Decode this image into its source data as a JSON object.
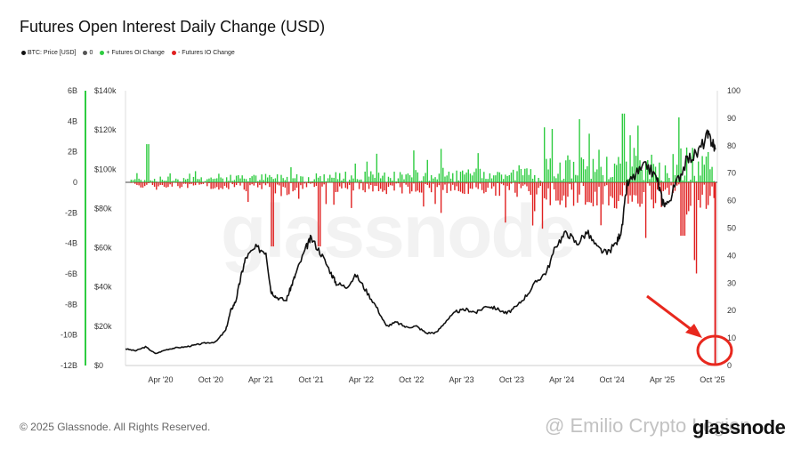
{
  "chart_data": {
    "type": "bar+line",
    "title": "Futures Open Interest Daily Change (USD)",
    "legend": [
      {
        "label": "BTC: Price [USD]",
        "color": "#111111"
      },
      {
        "label": "0",
        "color": "#555555"
      },
      {
        "label": "+ Futures OI Change",
        "color": "#2ecc40"
      },
      {
        "label": "- Futures IO Change",
        "color": "#e02020"
      }
    ],
    "x_ticks": [
      "Apr '20",
      "Oct '20",
      "Apr '21",
      "Oct '21",
      "Apr '22",
      "Oct '22",
      "Apr '23",
      "Oct '23",
      "Apr '24",
      "Oct '24",
      "Apr '25",
      "Oct '25"
    ],
    "left_axis_oi": {
      "ticks": [
        "6B",
        "4B",
        "2B",
        "0",
        "-2B",
        "-4B",
        "-6B",
        "-8B",
        "-10B",
        "-12B"
      ],
      "range": [
        -12000000000,
        6000000000
      ]
    },
    "left_axis_price": {
      "ticks": [
        "$140k",
        "$120k",
        "$100k",
        "$80k",
        "$60k",
        "$40k",
        "$20k",
        "$0"
      ],
      "range": [
        0,
        140000
      ]
    },
    "right_axis": {
      "ticks": [
        "100",
        "90",
        "80",
        "70",
        "60",
        "50",
        "40",
        "30",
        "20",
        "10",
        "0"
      ],
      "range": [
        0,
        100
      ]
    },
    "price_series": {
      "name": "BTC: Price [USD]",
      "x": [
        2019.9,
        2020.0,
        2020.1,
        2020.2,
        2020.3,
        2020.4,
        2020.5,
        2020.6,
        2020.7,
        2020.8,
        2020.9,
        2020.95,
        2021.0,
        2021.05,
        2021.1,
        2021.2,
        2021.3,
        2021.35,
        2021.4,
        2021.5,
        2021.55,
        2021.6,
        2021.7,
        2021.75,
        2021.85,
        2021.95,
        2022.0,
        2022.1,
        2022.2,
        2022.3,
        2022.4,
        2022.5,
        2022.6,
        2022.7,
        2022.8,
        2022.9,
        2023.0,
        2023.1,
        2023.2,
        2023.3,
        2023.4,
        2023.5,
        2023.6,
        2023.7,
        2023.8,
        2023.9,
        2024.0,
        2024.1,
        2024.2,
        2024.3,
        2024.4,
        2024.5,
        2024.6,
        2024.7,
        2024.8,
        2024.85,
        2024.9,
        2025.0,
        2025.1,
        2025.2,
        2025.25,
        2025.3,
        2025.4,
        2025.5,
        2025.6,
        2025.7,
        2025.75,
        2025.78
      ],
      "y": [
        8500,
        7500,
        9500,
        6000,
        8000,
        9000,
        9500,
        10500,
        11500,
        12000,
        18000,
        28000,
        33000,
        45000,
        55000,
        60000,
        58000,
        38000,
        35000,
        33000,
        40000,
        47000,
        60000,
        65000,
        57000,
        47000,
        42000,
        40000,
        46000,
        38000,
        30000,
        20000,
        22000,
        19500,
        20000,
        16500,
        16800,
        23000,
        27500,
        28500,
        27000,
        30500,
        29000,
        26500,
        30000,
        36000,
        43000,
        48000,
        62000,
        68000,
        62000,
        68000,
        60000,
        57000,
        63000,
        70000,
        92000,
        98000,
        102000,
        95000,
        84000,
        82000,
        94000,
        105000,
        108000,
        117000,
        114000,
        110000
      ]
    },
    "oi_change_extremes": {
      "max_positive": 3300000000,
      "min_negative": -12000000000,
      "spike_date": "Oct '25"
    }
  },
  "watermark": "glassnode",
  "credit": "@ Emilio Crypto Legion",
  "copyright": "© 2025 Glassnode. All Rights Reserved.",
  "brand": "glassnode",
  "annotation": {
    "color": "#e8281e",
    "arrow_label": "",
    "target": "Oct '25 liquidation spike"
  }
}
